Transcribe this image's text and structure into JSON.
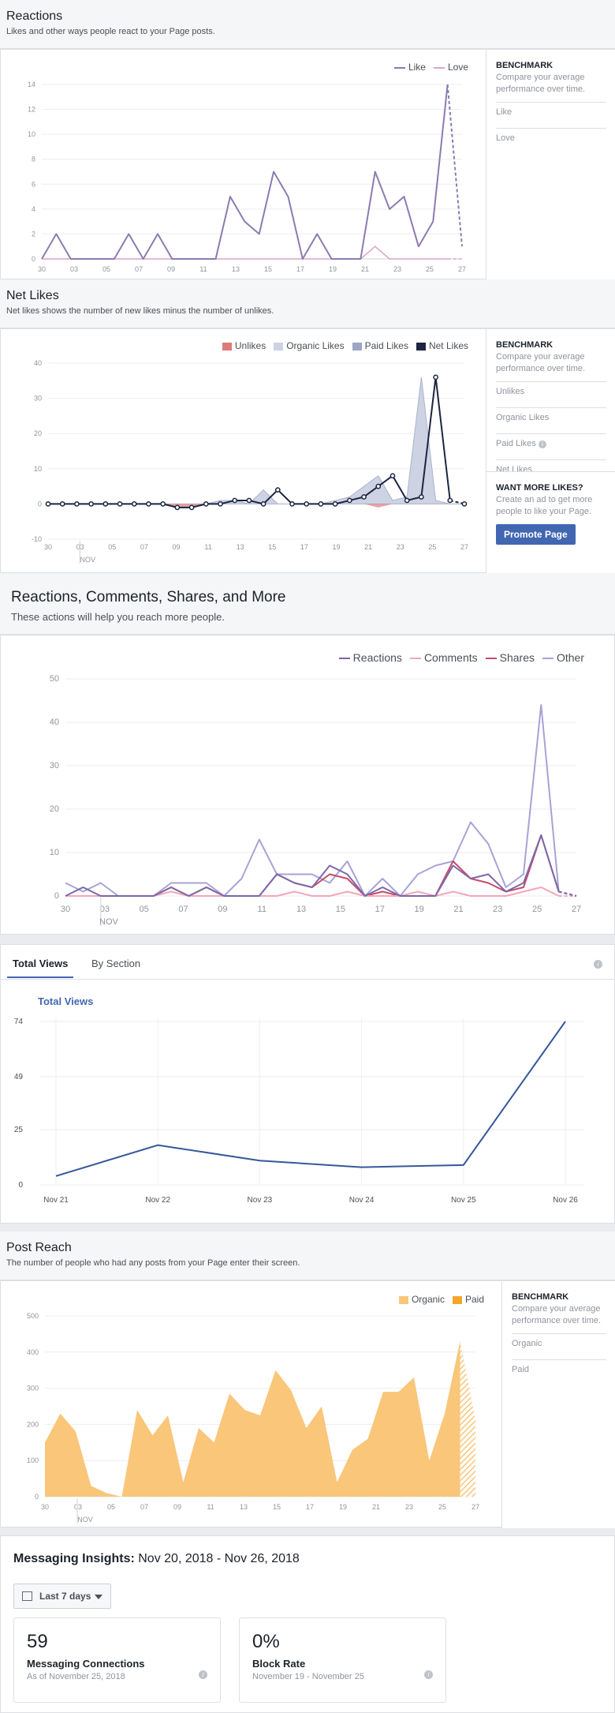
{
  "reactions": {
    "title": "Reactions",
    "subtitle": "Likes and other ways people react to your Page posts.",
    "benchmark": {
      "title": "BENCHMARK",
      "desc": "Compare your average performance over time.",
      "items": [
        "Like",
        "Love"
      ]
    }
  },
  "net_likes": {
    "title": "Net Likes",
    "subtitle": "Net likes shows the number of new likes minus the number of unlikes.",
    "benchmark": {
      "title": "BENCHMARK",
      "desc": "Compare your average performance over time.",
      "items": [
        "Unlikes",
        "Organic Likes",
        "Paid Likes",
        "Net Likes"
      ]
    },
    "promo": {
      "title": "WANT MORE LIKES?",
      "desc": "Create an ad to get more people to like your Page.",
      "button": "Promote Page"
    }
  },
  "rcs": {
    "title": "Reactions, Comments, Shares, and More",
    "subtitle": "These actions will help you reach more people."
  },
  "views": {
    "tabs": [
      "Total Views",
      "By Section"
    ],
    "active_tab": "Total Views",
    "chart_title": "Total Views"
  },
  "post_reach": {
    "title": "Post Reach",
    "subtitle": "The number of people who had any posts from your Page enter their screen.",
    "benchmark": {
      "title": "BENCHMARK",
      "desc": "Compare your average performance over time.",
      "items": [
        "Organic",
        "Paid"
      ]
    }
  },
  "messaging": {
    "title": "Messaging Insights:",
    "date_range": "Nov 20, 2018 - Nov 26, 2018",
    "range_button": "Last 7 days",
    "kpis": [
      {
        "value": "59",
        "label": "Messaging Connections",
        "sub": "As of November 25, 2018"
      },
      {
        "value": "0%",
        "label": "Block Rate",
        "sub": "November 19 - November 25"
      }
    ]
  },
  "chart_data": [
    {
      "id": "reactions",
      "type": "line",
      "x_ticks": [
        "30",
        "03",
        "05",
        "07",
        "09",
        "11",
        "13",
        "15",
        "17",
        "19",
        "21",
        "23",
        "25",
        "27"
      ],
      "x_sub_label": "",
      "ylim": [
        0,
        14
      ],
      "y_ticks": [
        0,
        2,
        4,
        6,
        8,
        10,
        12,
        14
      ],
      "legend": "top-right",
      "series": [
        {
          "name": "Like",
          "color": "#8c7bb1",
          "values": [
            0,
            2,
            0,
            0,
            0,
            0,
            2,
            0,
            2,
            0,
            0,
            0,
            0,
            5,
            3,
            2,
            7,
            5,
            0,
            2,
            0,
            0,
            0,
            7,
            4,
            5,
            1,
            3,
            14,
            1
          ]
        },
        {
          "name": "Love",
          "color": "#d9a6c4",
          "values": [
            0,
            0,
            0,
            0,
            0,
            0,
            0,
            0,
            0,
            0,
            0,
            0,
            0,
            0,
            0,
            0,
            0,
            0,
            0,
            0,
            0,
            0,
            0,
            1,
            0,
            0,
            0,
            0,
            0,
            0
          ]
        }
      ]
    },
    {
      "id": "net_likes",
      "type": "area",
      "x_ticks": [
        "30",
        "03",
        "05",
        "07",
        "09",
        "11",
        "13",
        "15",
        "17",
        "19",
        "21",
        "23",
        "25",
        "27"
      ],
      "x_sub_label": "NOV",
      "ylim": [
        -10,
        40
      ],
      "y_ticks": [
        -10,
        0,
        10,
        20,
        30,
        40
      ],
      "legend": "top-right",
      "series": [
        {
          "name": "Unlikes",
          "color": "#e07a7a",
          "values": [
            0,
            0,
            0,
            0,
            0,
            0,
            0,
            0,
            0,
            -1,
            -1,
            0,
            0,
            0,
            0,
            0,
            0,
            0,
            0,
            0,
            0,
            0,
            0,
            -1,
            0,
            0,
            0,
            0,
            0,
            0
          ]
        },
        {
          "name": "Organic Likes",
          "color": "#cdd3e3",
          "values": [
            0,
            0,
            0,
            0,
            0,
            0,
            0,
            0,
            0,
            0,
            0,
            0,
            1,
            1,
            0,
            4,
            0,
            0,
            0,
            0,
            1,
            2,
            5,
            8,
            1,
            2,
            36,
            1,
            0,
            0
          ]
        },
        {
          "name": "Paid Likes",
          "color": "#9ba5c6",
          "values": [
            0,
            0,
            0,
            0,
            0,
            0,
            0,
            0,
            0,
            0,
            0,
            0,
            0,
            0,
            0,
            0,
            0,
            0,
            0,
            0,
            0,
            0,
            0,
            0,
            0,
            0,
            0,
            0,
            0,
            0
          ]
        },
        {
          "name": "Net Likes",
          "color": "#1c2541",
          "values": [
            0,
            0,
            0,
            0,
            0,
            0,
            0,
            0,
            0,
            -1,
            -1,
            0,
            0,
            1,
            1,
            0,
            4,
            0,
            0,
            0,
            0,
            1,
            2,
            5,
            8,
            1,
            2,
            36,
            1,
            0
          ]
        }
      ]
    },
    {
      "id": "rcs",
      "type": "line",
      "x_ticks": [
        "30",
        "03",
        "05",
        "07",
        "09",
        "11",
        "13",
        "15",
        "17",
        "19",
        "21",
        "23",
        "25",
        "27"
      ],
      "x_sub_label": "NOV",
      "ylim": [
        0,
        50
      ],
      "y_ticks": [
        0,
        10,
        20,
        30,
        40,
        50
      ],
      "legend": "top-right",
      "series": [
        {
          "name": "Reactions",
          "color": "#7b68a8",
          "values": [
            0,
            2,
            0,
            0,
            0,
            0,
            2,
            0,
            2,
            0,
            0,
            0,
            5,
            3,
            2,
            7,
            5,
            0,
            2,
            0,
            0,
            0,
            7,
            4,
            5,
            1,
            3,
            14,
            1,
            0
          ]
        },
        {
          "name": "Comments",
          "color": "#f2a7b8",
          "values": [
            0,
            0,
            0,
            0,
            0,
            0,
            1,
            0,
            0,
            0,
            0,
            0,
            0,
            1,
            0,
            0,
            1,
            0,
            0,
            0,
            1,
            0,
            1,
            0,
            0,
            0,
            1,
            2,
            0,
            0
          ]
        },
        {
          "name": "Shares",
          "color": "#c74b6a",
          "values": [
            0,
            0,
            0,
            0,
            0,
            0,
            2,
            0,
            2,
            0,
            0,
            0,
            5,
            3,
            2,
            5,
            4,
            0,
            1,
            0,
            0,
            0,
            8,
            4,
            3,
            1,
            2,
            14,
            1,
            0
          ]
        },
        {
          "name": "Other",
          "color": "#a9a2d6",
          "values": [
            3,
            1,
            3,
            0,
            0,
            0,
            3,
            3,
            3,
            0,
            4,
            13,
            5,
            5,
            5,
            3,
            8,
            0,
            4,
            0,
            5,
            7,
            8,
            17,
            12,
            2,
            5,
            44,
            1,
            0
          ]
        }
      ]
    },
    {
      "id": "views",
      "type": "line",
      "categories": [
        "Nov 21",
        "Nov 22",
        "Nov 23",
        "Nov 24",
        "Nov 25",
        "Nov 26"
      ],
      "ylim": [
        0,
        74
      ],
      "y_ticks": [
        0,
        25,
        49,
        74
      ],
      "series": [
        {
          "name": "Total Views",
          "color": "#365899",
          "values": [
            4,
            18,
            11,
            8,
            9,
            74
          ]
        }
      ]
    },
    {
      "id": "post_reach",
      "type": "area",
      "x_ticks": [
        "30",
        "03",
        "05",
        "07",
        "09",
        "11",
        "13",
        "15",
        "17",
        "19",
        "21",
        "23",
        "25",
        "27"
      ],
      "x_sub_label": "NOV",
      "ylim": [
        0,
        500
      ],
      "y_ticks": [
        0,
        100,
        200,
        300,
        400,
        500
      ],
      "legend": "top-right",
      "series": [
        {
          "name": "Organic",
          "color": "#f9c67a",
          "values": [
            150,
            230,
            180,
            30,
            10,
            0,
            240,
            170,
            225,
            40,
            190,
            150,
            285,
            240,
            225,
            350,
            295,
            190,
            250,
            40,
            130,
            160,
            290,
            290,
            330,
            100,
            230,
            430,
            210
          ]
        },
        {
          "name": "Paid",
          "color": "#f4a52a",
          "values": [
            0,
            0,
            0,
            0,
            0,
            0,
            0,
            0,
            0,
            0,
            0,
            0,
            0,
            0,
            0,
            0,
            0,
            0,
            0,
            0,
            0,
            0,
            0,
            0,
            0,
            0,
            0,
            0,
            0
          ]
        }
      ]
    }
  ]
}
